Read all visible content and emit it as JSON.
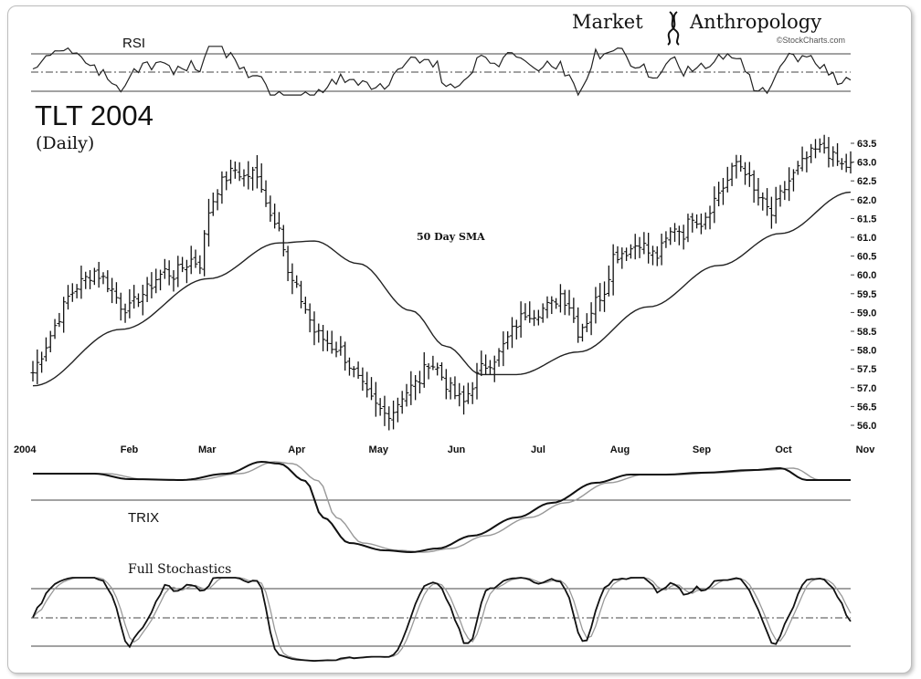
{
  "brand": {
    "word1": "Market",
    "word2": "Anthropology",
    "credit": "©StockCharts.com"
  },
  "chart_data": {
    "type": "line",
    "title": "TLT 2004",
    "subtitle": "(Daily)",
    "sma_label": "50 Day SMA",
    "panels": {
      "rsi": {
        "label": "RSI",
        "upper": 70,
        "mid": 50,
        "lower": 30
      },
      "trix": {
        "label": "TRIX"
      },
      "stoch": {
        "label": "Full Stochastics",
        "upper": 80,
        "mid": 50,
        "lower": 20
      }
    },
    "y_ticks": [
      "63.5",
      "63.0",
      "62.5",
      "62.0",
      "61.5",
      "61.0",
      "60.5",
      "60.0",
      "59.5",
      "59.0",
      "58.5",
      "58.0",
      "57.5",
      "57.0",
      "56.5",
      "56.0"
    ],
    "ylim": [
      56.0,
      63.5
    ],
    "x_ticks": [
      "2004",
      "Feb",
      "Mar",
      "Apr",
      "May",
      "Jun",
      "Jul",
      "Aug",
      "Sep",
      "Oct",
      "Nov"
    ],
    "price_anchors": [
      [
        0,
        57.4
      ],
      [
        2,
        57.9
      ],
      [
        4,
        58.4
      ],
      [
        6,
        58.9
      ],
      [
        8,
        59.4
      ],
      [
        10,
        59.7
      ],
      [
        12,
        59.9
      ],
      [
        14,
        60.1
      ],
      [
        16,
        59.9
      ],
      [
        18,
        59.6
      ],
      [
        20,
        59.2
      ],
      [
        22,
        59.1
      ],
      [
        24,
        59.4
      ],
      [
        26,
        59.6
      ],
      [
        28,
        59.9
      ],
      [
        30,
        60.1
      ],
      [
        32,
        60.0
      ],
      [
        34,
        60.2
      ],
      [
        36,
        60.4
      ],
      [
        38,
        60.3
      ],
      [
        40,
        61.7
      ],
      [
        42,
        62.3
      ],
      [
        44,
        62.6
      ],
      [
        46,
        62.8
      ],
      [
        48,
        62.6
      ],
      [
        50,
        62.7
      ],
      [
        52,
        62.4
      ],
      [
        54,
        61.6
      ],
      [
        56,
        61.4
      ],
      [
        58,
        60.0
      ],
      [
        60,
        59.6
      ],
      [
        62,
        59.1
      ],
      [
        64,
        58.5
      ],
      [
        66,
        58.3
      ],
      [
        68,
        58.1
      ],
      [
        70,
        58.0
      ],
      [
        72,
        57.6
      ],
      [
        74,
        57.2
      ],
      [
        76,
        56.8
      ],
      [
        78,
        56.5
      ],
      [
        80,
        56.3
      ],
      [
        82,
        56.4
      ],
      [
        84,
        56.8
      ],
      [
        86,
        57.0
      ],
      [
        88,
        57.2
      ],
      [
        90,
        57.7
      ],
      [
        92,
        57.5
      ],
      [
        94,
        57.1
      ],
      [
        96,
        56.8
      ],
      [
        98,
        56.6
      ],
      [
        100,
        57.1
      ],
      [
        102,
        57.5
      ],
      [
        104,
        57.7
      ],
      [
        106,
        57.9
      ],
      [
        108,
        58.3
      ],
      [
        110,
        58.7
      ],
      [
        112,
        59.0
      ],
      [
        114,
        59.0
      ],
      [
        116,
        59.1
      ],
      [
        118,
        59.2
      ],
      [
        120,
        59.5
      ],
      [
        122,
        59.2
      ],
      [
        124,
        58.5
      ],
      [
        126,
        58.8
      ],
      [
        128,
        59.3
      ],
      [
        130,
        59.6
      ],
      [
        132,
        60.5
      ],
      [
        134,
        60.6
      ],
      [
        136,
        60.7
      ],
      [
        138,
        60.9
      ],
      [
        140,
        60.6
      ],
      [
        142,
        60.5
      ],
      [
        144,
        60.9
      ],
      [
        146,
        61.3
      ],
      [
        148,
        61.1
      ],
      [
        150,
        61.6
      ],
      [
        152,
        61.4
      ],
      [
        154,
        61.8
      ],
      [
        156,
        62.2
      ],
      [
        158,
        62.5
      ],
      [
        160,
        63.0
      ],
      [
        162,
        62.8
      ],
      [
        164,
        62.2
      ],
      [
        166,
        61.9
      ],
      [
        168,
        61.6
      ],
      [
        170,
        62.1
      ],
      [
        172,
        62.5
      ],
      [
        174,
        62.8
      ],
      [
        176,
        63.1
      ],
      [
        178,
        63.3
      ],
      [
        180,
        63.4
      ],
      [
        182,
        63.1
      ],
      [
        184,
        62.9
      ],
      [
        186,
        62.9
      ]
    ],
    "sma_anchors": [
      [
        0,
        57.05
      ],
      [
        20,
        58.55
      ],
      [
        40,
        59.9
      ],
      [
        56,
        60.85
      ],
      [
        64,
        60.9
      ],
      [
        74,
        60.3
      ],
      [
        86,
        59.05
      ],
      [
        94,
        58.1
      ],
      [
        102,
        57.35
      ],
      [
        110,
        57.35
      ],
      [
        124,
        57.95
      ],
      [
        140,
        59.15
      ],
      [
        156,
        60.25
      ],
      [
        170,
        61.1
      ],
      [
        186,
        62.2
      ]
    ],
    "sessions": 187
  }
}
